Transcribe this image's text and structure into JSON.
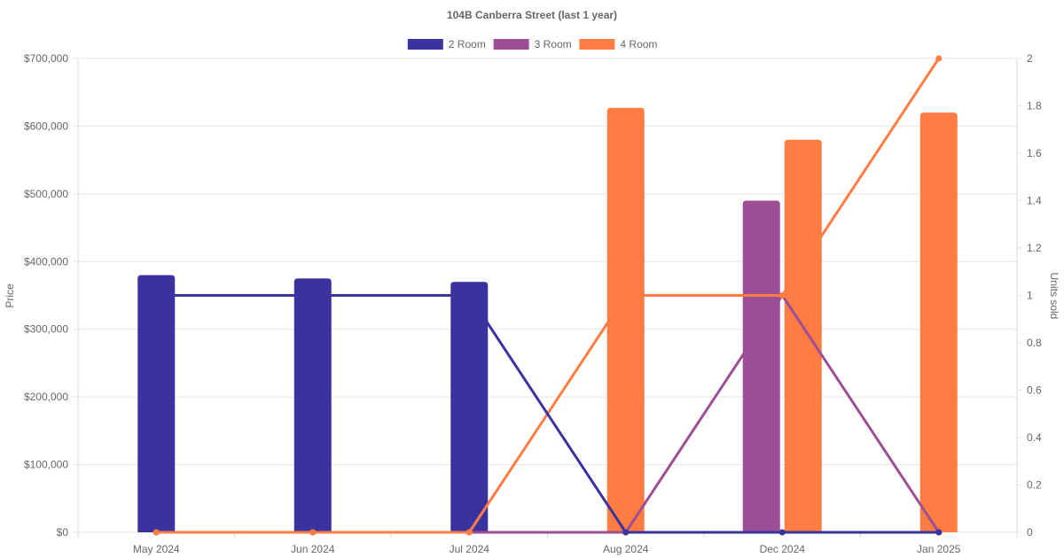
{
  "chart_data": {
    "type": "bar+line",
    "title": "104B Canberra Street (last 1 year)",
    "categories": [
      "May 2024",
      "Jun 2024",
      "Jul 2024",
      "Aug 2024",
      "Dec 2024",
      "Jan 2025"
    ],
    "y_left": {
      "label": "Price",
      "range": [
        0,
        700000
      ],
      "ticks": [
        "$0",
        "$100,000",
        "$200,000",
        "$300,000",
        "$400,000",
        "$500,000",
        "$600,000",
        "$700,000"
      ]
    },
    "y_right": {
      "label": "Units sold",
      "range": [
        0,
        2
      ],
      "ticks": [
        "0",
        "0.2",
        "0.4",
        "0.6",
        "0.8",
        "1",
        "1.2",
        "1.4",
        "1.6",
        "1.8",
        "2"
      ]
    },
    "legend_position": "top",
    "grid": true,
    "series": [
      {
        "name": "2 Room",
        "color": "#3a339f",
        "price": [
          380000,
          375000,
          370000,
          null,
          null,
          null
        ],
        "units_sold": [
          1,
          1,
          1,
          0,
          0,
          0
        ]
      },
      {
        "name": "3 Room",
        "color": "#9d4f96",
        "price": [
          null,
          null,
          null,
          null,
          490000,
          null
        ],
        "units_sold": [
          0,
          0,
          0,
          0,
          1,
          0
        ]
      },
      {
        "name": "4 Room",
        "color": "#ff7c43",
        "price": [
          null,
          null,
          null,
          627000,
          580000,
          620000
        ],
        "units_sold": [
          0,
          0,
          0,
          1,
          1,
          2
        ]
      }
    ]
  }
}
